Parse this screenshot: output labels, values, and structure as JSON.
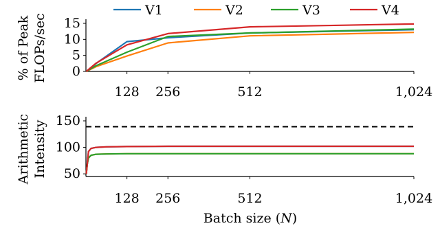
{
  "legend": [
    {
      "name": "V1",
      "color": "#1f77b4"
    },
    {
      "name": "V2",
      "color": "#ff7f0e"
    },
    {
      "name": "V3",
      "color": "#2ca02c"
    },
    {
      "name": "V4",
      "color": "#d62728"
    }
  ],
  "xlabel_prefix": "Batch size (",
  "xlabel_var": "N",
  "xlabel_suffix": ")",
  "chart_data": [
    {
      "type": "line",
      "ylabel_lines": [
        "% of Peak",
        "FLOPs/sec"
      ],
      "xlim": [
        0,
        1024
      ],
      "ylim": [
        0,
        15
      ],
      "xticks": [
        128,
        256,
        512,
        1024
      ],
      "xtick_labels": [
        "128",
        "256",
        "512",
        "1,024"
      ],
      "yticks": [
        0,
        5,
        10,
        15
      ],
      "ytick_labels": [
        "0",
        "5",
        "10",
        "15"
      ],
      "x": [
        1,
        32,
        128,
        256,
        512,
        1024
      ],
      "series": [
        {
          "name": "V1",
          "color": "#1f77b4",
          "values": [
            0,
            2.5,
            9.3,
            10.5,
            12.0,
            13.0
          ]
        },
        {
          "name": "V2",
          "color": "#ff7f0e",
          "values": [
            0,
            1.5,
            4.8,
            8.9,
            11.1,
            12.2
          ]
        },
        {
          "name": "V3",
          "color": "#2ca02c",
          "values": [
            0,
            1.8,
            6.0,
            10.9,
            12.0,
            13.2
          ]
        },
        {
          "name": "V4",
          "color": "#d62728",
          "values": [
            0,
            2.6,
            8.3,
            11.8,
            13.9,
            14.8
          ]
        }
      ]
    },
    {
      "type": "line",
      "ylabel_lines": [
        "Arithmetic",
        "Intensity"
      ],
      "xlim": [
        0,
        1024
      ],
      "ylim": [
        45,
        150
      ],
      "xticks": [
        128,
        256,
        512,
        1024
      ],
      "xtick_labels": [
        "128",
        "256",
        "512",
        "1,024"
      ],
      "yticks": [
        50,
        100,
        150
      ],
      "ytick_labels": [
        "50",
        "100",
        "150"
      ],
      "reference_line": {
        "y": 139,
        "style": "dashed",
        "color": "#000000"
      },
      "x": [
        1,
        4,
        8,
        16,
        32,
        64,
        128,
        256,
        512,
        1024
      ],
      "series": [
        {
          "name": "V1",
          "color": "#1f77b4",
          "values": [
            50,
            68,
            92,
            98,
            100,
            101,
            101.5,
            102,
            102,
            102
          ]
        },
        {
          "name": "V2",
          "color": "#ff7f0e",
          "values": [
            50,
            68,
            80,
            85,
            87,
            87.5,
            88,
            88,
            88,
            88
          ]
        },
        {
          "name": "V3",
          "color": "#2ca02c",
          "values": [
            50,
            68,
            80,
            85,
            87,
            87.5,
            88,
            88,
            88,
            88
          ]
        },
        {
          "name": "V4",
          "color": "#d62728",
          "values": [
            50,
            68,
            92,
            98,
            100,
            101,
            101.5,
            102,
            102,
            102
          ]
        }
      ]
    }
  ]
}
